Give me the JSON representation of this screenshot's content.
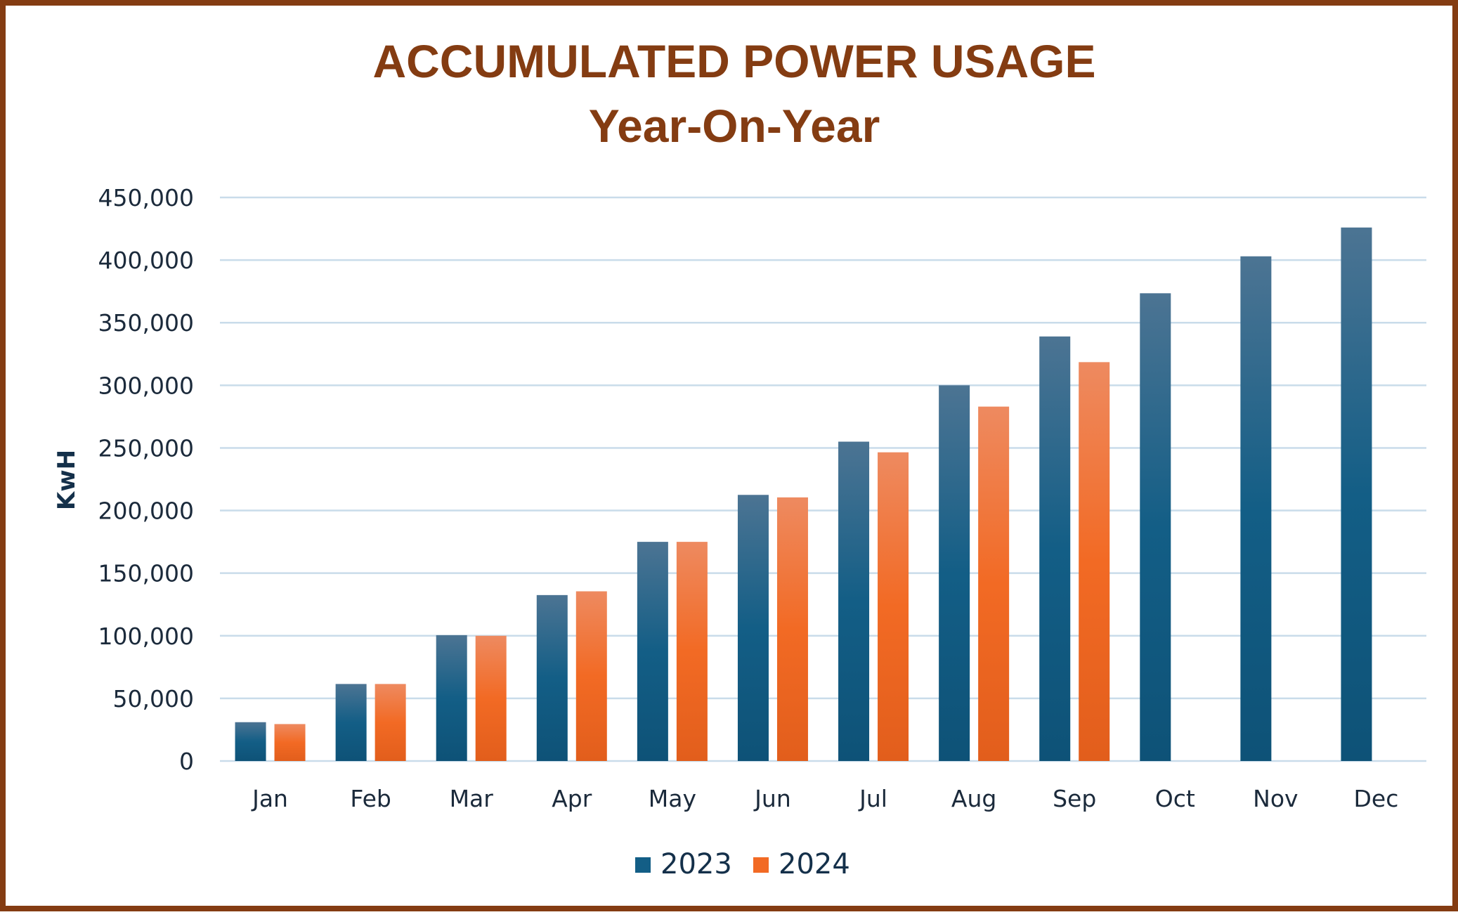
{
  "chart_data": {
    "type": "bar",
    "title": "ACCUMULATED POWER USAGE",
    "subtitle": "Year-On-Year",
    "xlabel": "",
    "ylabel": "KwH",
    "ylim": [
      0,
      450000
    ],
    "yticks": [
      0,
      50000,
      100000,
      150000,
      200000,
      250000,
      300000,
      350000,
      400000,
      450000
    ],
    "ytick_labels": [
      "0",
      "50,000",
      "100,000",
      "150,000",
      "200,000",
      "250,000",
      "300,000",
      "350,000",
      "400,000",
      "450,000"
    ],
    "categories": [
      "Jan",
      "Feb",
      "Mar",
      "Apr",
      "May",
      "Jun",
      "Jul",
      "Aug",
      "Sep",
      "Oct",
      "Nov",
      "Dec"
    ],
    "series": [
      {
        "name": "2023",
        "color": "#135E86",
        "values": [
          31000,
          61500,
          100500,
          132500,
          175000,
          212500,
          255000,
          300000,
          339000,
          373500,
          403000,
          426000
        ]
      },
      {
        "name": "2024",
        "color": "#F26A24",
        "values": [
          29500,
          61500,
          100000,
          135500,
          175000,
          210500,
          246500,
          283000,
          318500,
          null,
          null,
          null
        ]
      }
    ],
    "grid": true,
    "legend_position": "bottom"
  }
}
